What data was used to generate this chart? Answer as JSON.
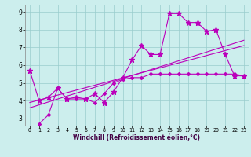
{
  "xlabel": "Windchill (Refroidissement éolien,°C)",
  "bg_color": "#cceeed",
  "grid_color": "#99cccc",
  "line_color": "#bb00bb",
  "xlim": [
    -0.5,
    23.5
  ],
  "ylim": [
    2.6,
    9.4
  ],
  "xticks": [
    0,
    1,
    2,
    3,
    4,
    5,
    6,
    7,
    8,
    9,
    10,
    11,
    12,
    13,
    14,
    15,
    16,
    17,
    18,
    19,
    20,
    21,
    22,
    23
  ],
  "yticks": [
    3,
    4,
    5,
    6,
    7,
    8,
    9
  ],
  "series1_x": [
    0,
    1,
    2,
    3,
    4,
    5,
    6,
    7,
    8,
    9,
    10,
    11,
    12,
    13,
    14,
    15,
    16,
    17,
    18,
    19,
    20,
    21,
    22,
    23
  ],
  "series1_y": [
    5.7,
    4.0,
    4.2,
    4.7,
    4.1,
    4.2,
    4.1,
    4.4,
    3.9,
    4.5,
    5.3,
    6.3,
    7.1,
    6.6,
    6.6,
    8.9,
    8.9,
    8.4,
    8.4,
    7.9,
    8.0,
    6.6,
    5.4,
    5.4
  ],
  "series2_x": [
    1,
    2,
    3,
    4,
    5,
    6,
    7,
    8,
    9,
    10,
    11,
    12,
    13,
    14,
    15,
    16,
    17,
    18,
    19,
    20,
    21,
    22,
    23
  ],
  "series2_y": [
    2.7,
    3.2,
    4.7,
    4.1,
    4.1,
    4.1,
    3.9,
    4.4,
    5.0,
    5.2,
    5.3,
    5.3,
    5.5,
    5.5,
    5.5,
    5.5,
    5.5,
    5.5,
    5.5,
    5.5,
    5.5,
    5.5,
    5.4
  ],
  "trend1_x": [
    0,
    23
  ],
  "trend1_y": [
    3.6,
    7.4
  ],
  "trend2_x": [
    0,
    23
  ],
  "trend2_y": [
    3.9,
    7.1
  ]
}
